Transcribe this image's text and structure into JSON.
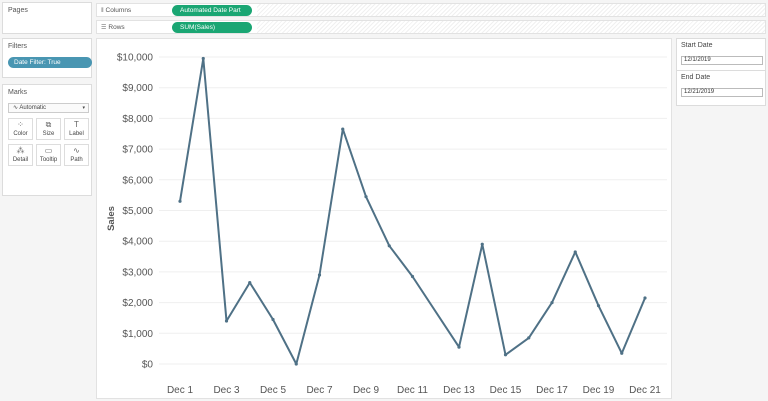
{
  "left_pane": {
    "pages_title": "Pages",
    "filters_title": "Filters",
    "filter_pill": "Date Filter: True",
    "marks_title": "Marks",
    "marks_type": "Automatic",
    "marks_buttons": [
      {
        "label": "Color",
        "icon": "color-icon",
        "glyph": "⁘"
      },
      {
        "label": "Size",
        "icon": "size-icon",
        "glyph": "⧉"
      },
      {
        "label": "Label",
        "icon": "label-icon",
        "glyph": "T"
      },
      {
        "label": "Detail",
        "icon": "detail-icon",
        "glyph": "⁂"
      },
      {
        "label": "Tooltip",
        "icon": "tooltip-icon",
        "glyph": "▭"
      },
      {
        "label": "Path",
        "icon": "path-icon",
        "glyph": "∿"
      }
    ]
  },
  "shelves": {
    "columns_label": "Columns",
    "columns_pill": "Automated Date Part",
    "rows_label": "Rows",
    "rows_pill": "SUM(Sales)"
  },
  "parameters": {
    "start_title": "Start Date",
    "start_value": "12/1/2019",
    "end_title": "End Date",
    "end_value": "12/21/2019"
  },
  "colors": {
    "line": "#4f7186",
    "filter_pill": "#4996b2",
    "shelf_pill": "#1aa673"
  },
  "chart_data": {
    "type": "line",
    "ylabel": "Sales",
    "ylim": [
      0,
      10000
    ],
    "yticks": [
      {
        "v": 0,
        "label": "$0"
      },
      {
        "v": 1000,
        "label": "$1,000"
      },
      {
        "v": 2000,
        "label": "$2,000"
      },
      {
        "v": 3000,
        "label": "$3,000"
      },
      {
        "v": 4000,
        "label": "$4,000"
      },
      {
        "v": 5000,
        "label": "$5,000"
      },
      {
        "v": 6000,
        "label": "$6,000"
      },
      {
        "v": 7000,
        "label": "$7,000"
      },
      {
        "v": 8000,
        "label": "$8,000"
      },
      {
        "v": 9000,
        "label": "$9,000"
      },
      {
        "v": 10000,
        "label": "$10,000"
      }
    ],
    "xtick_labels": [
      "Dec 1",
      "Dec 3",
      "Dec 5",
      "Dec 7",
      "Dec 9",
      "Dec 11",
      "Dec 13",
      "Dec 15",
      "Dec 17",
      "Dec 19",
      "Dec 21"
    ],
    "xtick_days": [
      1,
      3,
      5,
      7,
      9,
      11,
      13,
      15,
      17,
      19,
      21
    ],
    "x": [
      1,
      2,
      3,
      4,
      5,
      6,
      7,
      8,
      9,
      10,
      11,
      13,
      14,
      15,
      16,
      17,
      18,
      19,
      20,
      21
    ],
    "values": [
      5300,
      9950,
      1400,
      2650,
      1450,
      0,
      2900,
      7650,
      5450,
      3850,
      2850,
      550,
      3900,
      300,
      850,
      2000,
      3650,
      1900,
      350,
      2150
    ],
    "grid": true
  }
}
